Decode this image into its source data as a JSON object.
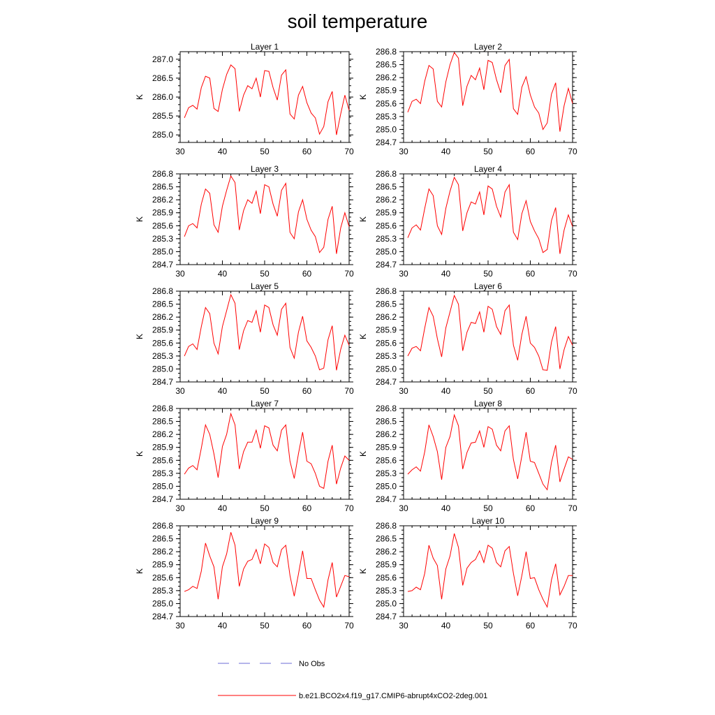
{
  "figure_title": "soil temperature",
  "chart_data": {
    "type": "line",
    "xlim": [
      30,
      70
    ],
    "x_ticks": [
      30,
      40,
      50,
      60,
      70
    ],
    "ylabel": "K",
    "x": [
      31,
      32,
      33,
      34,
      35,
      36,
      37,
      38,
      39,
      40,
      41,
      42,
      43,
      44,
      45,
      46,
      47,
      48,
      49,
      50,
      51,
      52,
      53,
      54,
      55,
      56,
      57,
      58,
      59,
      60,
      61,
      62,
      63,
      64,
      65,
      66,
      67,
      68,
      69,
      70
    ],
    "legend": [
      {
        "label": "No Obs",
        "color": "#6b6bd6",
        "dash": true
      },
      {
        "label": "b.e21.BCO2x4.f19_g17.CMIP6-abrupt4xCO2-2deg.001",
        "color": "#ff0000",
        "dash": false
      }
    ],
    "panels": [
      {
        "title": "Layer 1",
        "ylim": [
          284.8,
          287.2
        ],
        "y_ticks": [
          "285.0",
          "285.5",
          "286.0",
          "286.5",
          "287.0"
        ],
        "tick_values": [
          285.0,
          285.5,
          286.0,
          286.5,
          287.0
        ],
        "series": [
          {
            "name": "b.e21.BCO2x4.f19_g17.CMIP6-abrupt4xCO2-2deg.001",
            "values": [
              285.45,
              285.72,
              285.78,
              285.68,
              286.25,
              286.55,
              286.5,
              285.7,
              285.62,
              286.2,
              286.6,
              286.85,
              286.75,
              285.62,
              286.05,
              286.3,
              286.22,
              286.5,
              286.0,
              286.7,
              286.68,
              286.25,
              285.92,
              286.58,
              286.72,
              285.55,
              285.42,
              286.05,
              286.28,
              285.85,
              285.58,
              285.45,
              285.02,
              285.22,
              285.88,
              286.15,
              285.0,
              285.55,
              286.05,
              285.65
            ]
          }
        ]
      },
      {
        "title": "Layer 2",
        "ylim": [
          284.7,
          286.8
        ],
        "y_ticks": [
          "284.7",
          "285.0",
          "285.3",
          "285.6",
          "285.9",
          "286.2",
          "286.5",
          "286.8"
        ],
        "tick_values": [
          284.7,
          285.0,
          285.3,
          285.6,
          285.9,
          286.2,
          286.5,
          286.8
        ],
        "series": [
          {
            "name": "b.e21.BCO2x4.f19_g17.CMIP6-abrupt4xCO2-2deg.001",
            "values": [
              285.4,
              285.65,
              285.7,
              285.6,
              286.12,
              286.48,
              286.4,
              285.65,
              285.52,
              286.1,
              286.5,
              286.78,
              286.65,
              285.55,
              286.0,
              286.25,
              286.15,
              286.42,
              285.92,
              286.6,
              286.55,
              286.15,
              285.85,
              286.48,
              286.62,
              285.48,
              285.35,
              285.98,
              286.22,
              285.8,
              285.52,
              285.38,
              285.0,
              285.15,
              285.82,
              286.08,
              284.95,
              285.55,
              285.95,
              285.6
            ]
          }
        ]
      },
      {
        "title": "Layer 3",
        "ylim": [
          284.7,
          286.8
        ],
        "y_ticks": [
          "284.7",
          "285.0",
          "285.3",
          "285.6",
          "285.9",
          "286.2",
          "286.5",
          "286.8"
        ],
        "tick_values": [
          284.7,
          285.0,
          285.3,
          285.6,
          285.9,
          286.2,
          286.5,
          286.8
        ],
        "series": [
          {
            "name": "b.e21.BCO2x4.f19_g17.CMIP6-abrupt4xCO2-2deg.001",
            "values": [
              285.35,
              285.6,
              285.65,
              285.55,
              286.1,
              286.45,
              286.35,
              285.62,
              285.45,
              286.05,
              286.42,
              286.75,
              286.6,
              285.5,
              285.95,
              286.2,
              286.12,
              286.4,
              285.88,
              286.55,
              286.5,
              286.1,
              285.82,
              286.42,
              286.58,
              285.45,
              285.3,
              285.92,
              286.2,
              285.75,
              285.5,
              285.35,
              284.98,
              285.1,
              285.75,
              286.05,
              284.95,
              285.55,
              285.9,
              285.58
            ]
          }
        ]
      },
      {
        "title": "Layer 4",
        "ylim": [
          284.7,
          286.8
        ],
        "y_ticks": [
          "284.7",
          "285.0",
          "285.3",
          "285.6",
          "285.9",
          "286.2",
          "286.5",
          "286.8"
        ],
        "tick_values": [
          284.7,
          285.0,
          285.3,
          285.6,
          285.9,
          286.2,
          286.5,
          286.8
        ],
        "series": [
          {
            "name": "b.e21.BCO2x4.f19_g17.CMIP6-abrupt4xCO2-2deg.001",
            "values": [
              285.32,
              285.55,
              285.62,
              285.5,
              286.0,
              286.45,
              286.3,
              285.6,
              285.4,
              286.0,
              286.4,
              286.72,
              286.55,
              285.48,
              285.9,
              286.15,
              286.1,
              286.38,
              285.85,
              286.52,
              286.45,
              286.05,
              285.8,
              286.38,
              286.55,
              285.45,
              285.28,
              285.88,
              286.18,
              285.7,
              285.48,
              285.3,
              284.98,
              285.05,
              285.72,
              286.02,
              284.95,
              285.5,
              285.85,
              285.58
            ]
          }
        ]
      },
      {
        "title": "Layer 5",
        "ylim": [
          284.7,
          286.8
        ],
        "y_ticks": [
          "284.7",
          "285.0",
          "285.3",
          "285.6",
          "285.9",
          "286.2",
          "286.5",
          "286.8"
        ],
        "tick_values": [
          284.7,
          285.0,
          285.3,
          285.6,
          285.9,
          286.2,
          286.5,
          286.8
        ],
        "series": [
          {
            "name": "b.e21.BCO2x4.f19_g17.CMIP6-abrupt4xCO2-2deg.001",
            "values": [
              285.3,
              285.52,
              285.58,
              285.45,
              285.98,
              286.42,
              286.28,
              285.6,
              285.35,
              285.98,
              286.35,
              286.72,
              286.52,
              285.45,
              285.88,
              286.12,
              286.08,
              286.35,
              285.85,
              286.48,
              286.42,
              286.02,
              285.78,
              286.38,
              286.52,
              285.5,
              285.25,
              285.85,
              286.22,
              285.65,
              285.5,
              285.3,
              284.98,
              285.02,
              285.68,
              286.0,
              284.97,
              285.45,
              285.78,
              285.55
            ]
          }
        ]
      },
      {
        "title": "Layer 6",
        "ylim": [
          284.7,
          286.8
        ],
        "y_ticks": [
          "284.7",
          "285.0",
          "285.3",
          "285.6",
          "285.9",
          "286.2",
          "286.5",
          "286.8"
        ],
        "tick_values": [
          284.7,
          285.0,
          285.3,
          285.6,
          285.9,
          286.2,
          286.5,
          286.8
        ],
        "series": [
          {
            "name": "b.e21.BCO2x4.f19_g17.CMIP6-abrupt4xCO2-2deg.001",
            "values": [
              285.3,
              285.48,
              285.52,
              285.42,
              285.95,
              286.42,
              286.22,
              285.7,
              285.28,
              285.95,
              286.32,
              286.7,
              286.5,
              285.42,
              285.85,
              286.08,
              286.05,
              286.32,
              285.85,
              286.45,
              286.38,
              285.98,
              285.8,
              286.35,
              286.48,
              285.55,
              285.2,
              285.8,
              286.22,
              285.6,
              285.5,
              285.3,
              284.98,
              284.97,
              285.62,
              285.98,
              285.0,
              285.45,
              285.75,
              285.55
            ]
          }
        ]
      },
      {
        "title": "Layer 7",
        "ylim": [
          284.7,
          286.8
        ],
        "y_ticks": [
          "284.7",
          "285.0",
          "285.3",
          "285.6",
          "285.9",
          "286.2",
          "286.5",
          "286.8"
        ],
        "tick_values": [
          284.7,
          285.0,
          285.3,
          285.6,
          285.9,
          286.2,
          286.5,
          286.8
        ],
        "series": [
          {
            "name": "b.e21.BCO2x4.f19_g17.CMIP6-abrupt4xCO2-2deg.001",
            "values": [
              285.28,
              285.42,
              285.48,
              285.38,
              285.88,
              286.42,
              286.2,
              285.75,
              285.2,
              285.92,
              286.2,
              286.68,
              286.42,
              285.4,
              285.8,
              286.02,
              286.02,
              286.3,
              285.88,
              286.4,
              286.35,
              285.95,
              285.82,
              286.3,
              286.42,
              285.58,
              285.18,
              285.75,
              286.25,
              285.58,
              285.52,
              285.3,
              285.0,
              284.95,
              285.58,
              285.95,
              285.05,
              285.42,
              285.7,
              285.6
            ]
          }
        ]
      },
      {
        "title": "Layer 8",
        "ylim": [
          284.7,
          286.8
        ],
        "y_ticks": [
          "284.7",
          "285.0",
          "285.3",
          "285.6",
          "285.9",
          "286.2",
          "286.5",
          "286.8"
        ],
        "tick_values": [
          284.7,
          285.0,
          285.3,
          285.6,
          285.9,
          286.2,
          286.5,
          286.8
        ],
        "series": [
          {
            "name": "b.e21.BCO2x4.f19_g17.CMIP6-abrupt4xCO2-2deg.001",
            "values": [
              285.28,
              285.38,
              285.45,
              285.35,
              285.8,
              286.42,
              286.15,
              285.8,
              285.15,
              285.9,
              286.15,
              286.65,
              286.4,
              285.4,
              285.78,
              286.0,
              286.02,
              286.28,
              285.9,
              286.38,
              286.32,
              285.95,
              285.82,
              286.28,
              286.4,
              285.62,
              285.17,
              285.7,
              286.25,
              285.58,
              285.55,
              285.3,
              285.05,
              284.92,
              285.55,
              285.95,
              285.1,
              285.4,
              285.68,
              285.62
            ]
          }
        ]
      },
      {
        "title": "Layer 9",
        "ylim": [
          284.7,
          286.8
        ],
        "y_ticks": [
          "284.7",
          "285.0",
          "285.3",
          "285.6",
          "285.9",
          "286.2",
          "286.5",
          "286.8"
        ],
        "tick_values": [
          284.7,
          285.0,
          285.3,
          285.6,
          285.9,
          286.2,
          286.5,
          286.8
        ],
        "series": [
          {
            "name": "b.e21.BCO2x4.f19_g17.CMIP6-abrupt4xCO2-2deg.001",
            "values": [
              285.28,
              285.32,
              285.4,
              285.35,
              285.75,
              286.4,
              286.1,
              285.85,
              285.1,
              285.85,
              286.15,
              286.65,
              286.35,
              285.4,
              285.8,
              285.98,
              286.02,
              286.25,
              285.92,
              286.38,
              286.3,
              285.95,
              285.85,
              286.25,
              286.35,
              285.65,
              285.17,
              285.68,
              286.22,
              285.58,
              285.58,
              285.32,
              285.08,
              284.92,
              285.55,
              285.95,
              285.15,
              285.4,
              285.65,
              285.62
            ]
          }
        ]
      },
      {
        "title": "Layer 10",
        "ylim": [
          284.7,
          286.8
        ],
        "y_ticks": [
          "284.7",
          "285.0",
          "285.3",
          "285.6",
          "285.9",
          "286.2",
          "286.5",
          "286.8"
        ],
        "tick_values": [
          284.7,
          285.0,
          285.3,
          285.6,
          285.9,
          286.2,
          286.5,
          286.8
        ],
        "series": [
          {
            "name": "b.e21.BCO2x4.f19_g17.CMIP6-abrupt4xCO2-2deg.001",
            "values": [
              285.28,
              285.3,
              285.38,
              285.32,
              285.7,
              286.35,
              286.05,
              285.88,
              285.1,
              285.8,
              286.1,
              286.62,
              286.3,
              285.42,
              285.82,
              285.95,
              286.02,
              286.22,
              285.95,
              286.35,
              286.28,
              285.95,
              285.85,
              286.22,
              286.32,
              285.7,
              285.18,
              285.65,
              286.2,
              285.58,
              285.6,
              285.32,
              285.1,
              284.92,
              285.55,
              285.92,
              285.2,
              285.4,
              285.65,
              285.65
            ]
          }
        ]
      }
    ]
  }
}
